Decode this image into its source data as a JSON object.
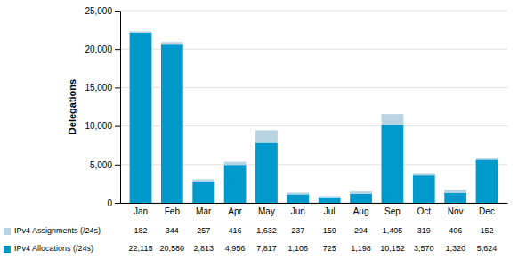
{
  "chart_data": {
    "type": "bar",
    "stacked": true,
    "grid": true,
    "legend": "bottom",
    "data_labels": true,
    "ylabel": "Delegations",
    "categories": [
      "Jan",
      "Feb",
      "Mar",
      "Apr",
      "May",
      "Jun",
      "Jul",
      "Aug",
      "Sep",
      "Oct",
      "Nov",
      "Dec"
    ],
    "ylim": [
      0,
      25000
    ],
    "yticks": [
      0,
      {
        "value": 5000,
        "label": "5,000"
      },
      {
        "value": 10000,
        "label": "10,000"
      },
      {
        "value": 15000,
        "label": "15,000"
      },
      {
        "value": 20000,
        "label": "20,000"
      },
      {
        "value": 25000,
        "label": "25,000"
      }
    ],
    "series": [
      {
        "name": "IPv4 Allocations (/24s)",
        "color": "#0099cc",
        "values": [
          22115,
          20580,
          2813,
          4956,
          7817,
          1106,
          725,
          1198,
          10152,
          3570,
          1320,
          5624
        ],
        "value_labels": [
          "22,115",
          "20,580",
          "2,813",
          "4,956",
          "7,817",
          "1,106",
          "725",
          "1,198",
          "10,152",
          "3,570",
          "1,320",
          "5,624"
        ]
      },
      {
        "name": "IPv4 Assignments (/24s)",
        "color": "#b8d4e3",
        "values": [
          182,
          344,
          257,
          416,
          1632,
          237,
          159,
          294,
          1405,
          319,
          406,
          152
        ],
        "value_labels": [
          "182",
          "344",
          "257",
          "416",
          "1,632",
          "237",
          "159",
          "294",
          "1,405",
          "319",
          "406",
          "152"
        ]
      }
    ]
  }
}
